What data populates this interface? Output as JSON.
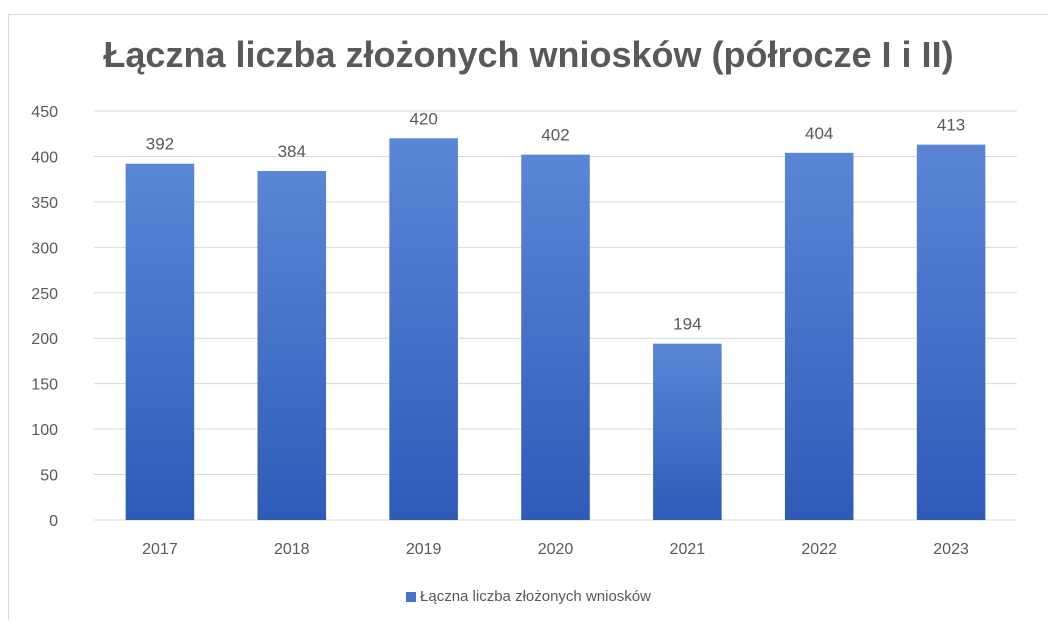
{
  "chart_data": {
    "type": "bar",
    "title": "Łączna liczba złożonych wniosków (półrocze I i II)",
    "categories": [
      "2017",
      "2018",
      "2019",
      "2020",
      "2021",
      "2022",
      "2023"
    ],
    "series": [
      {
        "name": "Łączna liczba złożonych wniosków",
        "values": [
          392,
          384,
          420,
          402,
          194,
          404,
          413
        ],
        "color": "#4472c4"
      }
    ],
    "ylim": [
      0,
      450
    ],
    "yticks": [
      0,
      50,
      100,
      150,
      200,
      250,
      300,
      350,
      400,
      450
    ],
    "grid": true,
    "data_labels": true,
    "legend": "bottom"
  },
  "colors": {
    "bar_top": "#5b86d6",
    "bar_bottom": "#2f5bb8",
    "grid": "#d9d9d9",
    "text": "#595959"
  }
}
